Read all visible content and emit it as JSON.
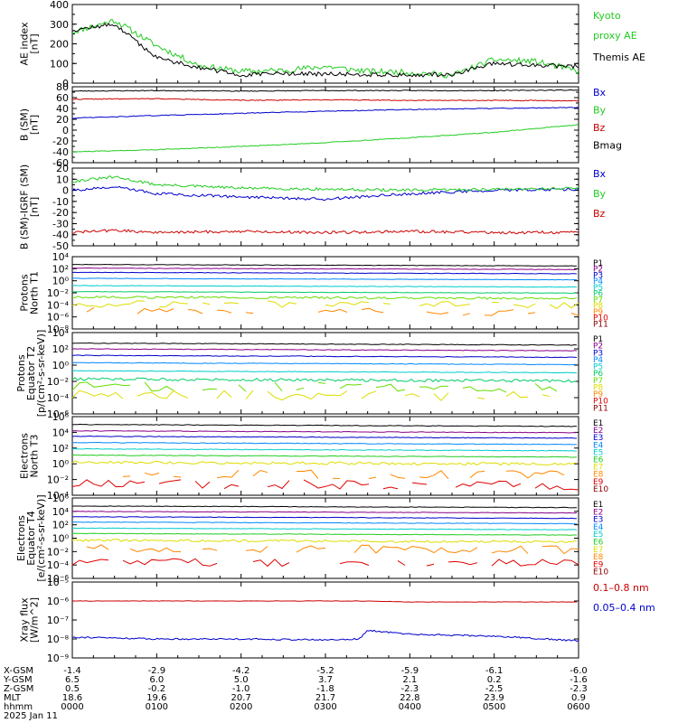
{
  "panels": [
    {
      "id": "ae",
      "ylabel": [
        "AE index",
        "[nT]"
      ],
      "ticks": [
        "400",
        "300",
        "200",
        "100",
        "0"
      ],
      "tick_values": [
        400,
        300,
        200,
        100,
        0
      ],
      "ylim": [
        0,
        400
      ],
      "log": false,
      "legend": [
        {
          "label": "Kyoto",
          "color": "#22cc22"
        },
        {
          "label": "proxy AE",
          "color": "#22cc22"
        },
        {
          "label": "Themis AE",
          "color": "#000000"
        }
      ]
    },
    {
      "id": "bsm",
      "ylabel": [
        "B (SM)",
        "[nT]"
      ],
      "ticks": [
        "80",
        "60",
        "40",
        "20",
        "0",
        "-20",
        "-40",
        "-60"
      ],
      "tick_values": [
        80,
        60,
        40,
        20,
        0,
        -20,
        -40,
        -60
      ],
      "ylim": [
        -60,
        80
      ],
      "log": false,
      "legend": [
        {
          "label": "Bx",
          "color": "#0000cc"
        },
        {
          "label": "By",
          "color": "#22cc22"
        },
        {
          "label": "Bz",
          "color": "#cc0000"
        },
        {
          "label": "Bmag",
          "color": "#000000"
        }
      ]
    },
    {
      "id": "bigrf",
      "ylabel": [
        "B (SM)-IGRF (SM)",
        "[nT]"
      ],
      "ticks": [
        "20",
        "10",
        "0",
        "-10",
        "-20",
        "-30",
        "-40",
        "-50"
      ],
      "tick_values": [
        20,
        10,
        0,
        -10,
        -20,
        -30,
        -40,
        -50
      ],
      "ylim": [
        -50,
        20
      ],
      "log": false,
      "legend": [
        {
          "label": "Bx",
          "color": "#0000cc"
        },
        {
          "label": "By",
          "color": "#22cc22"
        },
        {
          "label": "Bz",
          "color": "#cc0000"
        }
      ]
    },
    {
      "id": "pt1",
      "ylabel": [
        "Protons",
        "North T1"
      ],
      "ticks": [
        "10⁴",
        "10²",
        "10⁰",
        "10⁻²",
        "10⁻⁴",
        "10⁻⁶",
        "10⁻⁸"
      ],
      "tick_values": [
        4,
        2,
        0,
        -2,
        -4,
        -6,
        -8
      ],
      "ylim": [
        -8,
        4
      ],
      "log": true,
      "legend": [
        {
          "label": "P1",
          "color": "#000000"
        },
        {
          "label": "P2",
          "color": "#880088"
        },
        {
          "label": "P3",
          "color": "#0000cc"
        },
        {
          "label": "P4",
          "color": "#0088ff"
        },
        {
          "label": "P5",
          "color": "#00cccc"
        },
        {
          "label": "P6",
          "color": "#00cc66"
        },
        {
          "label": "P7",
          "color": "#66dd00"
        },
        {
          "label": "P8",
          "color": "#dddd00"
        },
        {
          "label": "P9",
          "color": "#ff8800"
        },
        {
          "label": "P10",
          "color": "#dd0000"
        },
        {
          "label": "P11",
          "color": "#880000"
        }
      ]
    },
    {
      "id": "pt2",
      "ylabel": [
        "Protons",
        "Equator T2",
        "[p/(cm²-s-sr-keV)]"
      ],
      "ticks": [
        "10⁴",
        "10²",
        "10⁰",
        "10⁻²",
        "10⁻⁴",
        "10⁻⁶"
      ],
      "tick_values": [
        4,
        2,
        0,
        -2,
        -4,
        -6
      ],
      "ylim": [
        -6,
        4
      ],
      "log": true,
      "legend": [
        {
          "label": "P1",
          "color": "#000000"
        },
        {
          "label": "P2",
          "color": "#880088"
        },
        {
          "label": "P3",
          "color": "#0000cc"
        },
        {
          "label": "P4",
          "color": "#0088ff"
        },
        {
          "label": "P5",
          "color": "#00cccc"
        },
        {
          "label": "P6",
          "color": "#00cc66"
        },
        {
          "label": "P7",
          "color": "#66dd00"
        },
        {
          "label": "P8",
          "color": "#dddd00"
        },
        {
          "label": "P9",
          "color": "#ff8800"
        },
        {
          "label": "P10",
          "color": "#dd0000"
        },
        {
          "label": "P11",
          "color": "#880000"
        }
      ]
    },
    {
      "id": "et3",
      "ylabel": [
        "Electrons",
        "North T3"
      ],
      "ticks": [
        "10⁶",
        "10⁴",
        "10²",
        "10⁰",
        "10⁻²",
        "10⁻⁴"
      ],
      "tick_values": [
        6,
        4,
        2,
        0,
        -2,
        -4
      ],
      "ylim": [
        -4,
        6
      ],
      "log": true,
      "legend": [
        {
          "label": "E1",
          "color": "#000000"
        },
        {
          "label": "E2",
          "color": "#880088"
        },
        {
          "label": "E3",
          "color": "#0000cc"
        },
        {
          "label": "E4",
          "color": "#0088ff"
        },
        {
          "label": "E5",
          "color": "#00cccc"
        },
        {
          "label": "E6",
          "color": "#22cc22"
        },
        {
          "label": "E7",
          "color": "#dddd00"
        },
        {
          "label": "E8",
          "color": "#ff8800"
        },
        {
          "label": "E9",
          "color": "#dd0000"
        },
        {
          "label": "E10",
          "color": "#880000"
        }
      ]
    },
    {
      "id": "et4",
      "ylabel": [
        "Electrons",
        "Equator T4",
        "[e/(cm²-s-sr-keV)]"
      ],
      "ticks": [
        "10⁶",
        "10⁴",
        "10²",
        "10⁰",
        "10⁻²",
        "10⁻⁴",
        "10⁻⁶"
      ],
      "tick_values": [
        6,
        4,
        2,
        0,
        -2,
        -4,
        -6
      ],
      "ylim": [
        -6,
        6
      ],
      "log": true,
      "legend": [
        {
          "label": "E1",
          "color": "#000000"
        },
        {
          "label": "E2",
          "color": "#880088"
        },
        {
          "label": "E3",
          "color": "#0000cc"
        },
        {
          "label": "E4",
          "color": "#0088ff"
        },
        {
          "label": "E5",
          "color": "#00cccc"
        },
        {
          "label": "E6",
          "color": "#22cc22"
        },
        {
          "label": "E7",
          "color": "#dddd00"
        },
        {
          "label": "E8",
          "color": "#ff8800"
        },
        {
          "label": "E9",
          "color": "#dd0000"
        },
        {
          "label": "E10",
          "color": "#880000"
        }
      ]
    },
    {
      "id": "xray",
      "ylabel": [
        "Xray flux",
        "[W/m^2]"
      ],
      "ticks": [
        "10⁻⁵",
        "10⁻⁶",
        "10⁻⁷",
        "10⁻⁸",
        "10⁻⁹"
      ],
      "tick_values": [
        -5,
        -6,
        -7,
        -8,
        -9
      ],
      "ylim": [
        -9,
        -5
      ],
      "log": true,
      "legend": [
        {
          "label": "0.1–0.8 nm",
          "color": "#cc0000"
        },
        {
          "label": "0.05–0.4 nm",
          "color": "#0000cc"
        }
      ]
    }
  ],
  "bottom_axis": {
    "row_labels": [
      "X-GSM",
      "Y-GSM",
      "Z-GSM",
      "MLT",
      "hhmm",
      "2025 Jan 11"
    ],
    "columns": [
      [
        "-1.4",
        "6.5",
        "0.5",
        "18.6",
        "0000"
      ],
      [
        "-2.9",
        "6.0",
        "-0.2",
        "19.6",
        "0100"
      ],
      [
        "-4.2",
        "5.0",
        "-1.0",
        "20.7",
        "0200"
      ],
      [
        "-5.2",
        "3.7",
        "-1.8",
        "21.7",
        "0300"
      ],
      [
        "-5.9",
        "2.1",
        "-2.3",
        "22.8",
        "0400"
      ],
      [
        "-6.1",
        "0.2",
        "-2.5",
        "23.9",
        "0500"
      ],
      [
        "-6.0",
        "-1.6",
        "-2.3",
        "0.9",
        "0600"
      ]
    ]
  },
  "chart_data": [
    {
      "type": "line",
      "ylabel": "AE index [nT]",
      "ylim": [
        0,
        400
      ],
      "x": [
        0,
        0.5,
        1,
        1.5,
        2,
        2.5,
        3,
        3.5,
        4,
        4.5,
        5,
        5.5,
        6
      ],
      "series": [
        {
          "name": "Kyoto proxy AE",
          "values": [
            260,
            320,
            190,
            90,
            60,
            65,
            85,
            60,
            55,
            40,
            120,
            110,
            60
          ]
        },
        {
          "name": "Themis AE",
          "values": [
            270,
            300,
            130,
            80,
            40,
            50,
            45,
            45,
            40,
            45,
            100,
            90,
            85
          ]
        }
      ]
    },
    {
      "type": "line",
      "ylabel": "B (SM) [nT]",
      "ylim": [
        -60,
        80
      ],
      "x": [
        0,
        1,
        2,
        3,
        4,
        5,
        6
      ],
      "series": [
        {
          "name": "Bx",
          "values": [
            22,
            27,
            31,
            35,
            38,
            40,
            42
          ]
        },
        {
          "name": "By",
          "values": [
            -40,
            -36,
            -30,
            -23,
            -14,
            -4,
            10
          ]
        },
        {
          "name": "Bz",
          "values": [
            57,
            58,
            55,
            56,
            55,
            55,
            54
          ]
        },
        {
          "name": "Bmag",
          "values": [
            72,
            73,
            72,
            73,
            73,
            73,
            74
          ]
        }
      ]
    },
    {
      "type": "line",
      "ylabel": "B (SM)-IGRF (SM) [nT]",
      "ylim": [
        -50,
        20
      ],
      "x": [
        0,
        0.5,
        1,
        2,
        3,
        4,
        5,
        6
      ],
      "series": [
        {
          "name": "Bx",
          "values": [
            0,
            3,
            -3,
            -6,
            -8,
            -3,
            0,
            1
          ]
        },
        {
          "name": "By",
          "values": [
            8,
            12,
            5,
            2,
            1,
            0,
            1,
            2
          ]
        },
        {
          "name": "Bz",
          "values": [
            -38,
            -36,
            -38,
            -37,
            -38,
            -37,
            -38,
            -38
          ]
        }
      ]
    },
    {
      "type": "line",
      "ylabel": "Protons North T1 (log10 flux)",
      "ylim": [
        -8,
        4
      ],
      "series": [
        {
          "name": "P1",
          "values": [
            2.7
          ]
        },
        {
          "name": "P2",
          "values": [
            2.1
          ]
        },
        {
          "name": "P3",
          "values": [
            1.4
          ]
        },
        {
          "name": "P4",
          "values": [
            0.4
          ]
        },
        {
          "name": "P5",
          "values": [
            -0.8
          ]
        },
        {
          "name": "P6",
          "values": [
            -1.8
          ]
        },
        {
          "name": "P7",
          "values": [
            -2.7
          ]
        },
        {
          "name": "P8",
          "values": [
            -3.8
          ]
        },
        {
          "name": "P9",
          "values": [
            -5.0
          ]
        }
      ]
    },
    {
      "type": "line",
      "ylabel": "Protons Equator T2 (log10 flux)",
      "ylim": [
        -6,
        4
      ],
      "series": [
        {
          "name": "P1",
          "values": [
            2.7
          ]
        },
        {
          "name": "P2",
          "values": [
            2.0
          ]
        },
        {
          "name": "P3",
          "values": [
            1.2
          ]
        },
        {
          "name": "P4",
          "values": [
            0.3
          ]
        },
        {
          "name": "P5",
          "values": [
            -0.7
          ]
        },
        {
          "name": "P6",
          "values": [
            -1.7
          ]
        },
        {
          "name": "P7",
          "values": [
            -2.6
          ]
        },
        {
          "name": "P8",
          "values": [
            -3.6
          ]
        }
      ]
    },
    {
      "type": "line",
      "ylabel": "Electrons North T3 (log10 flux)",
      "ylim": [
        -4,
        6
      ],
      "series": [
        {
          "name": "E1",
          "values": [
            5.0
          ]
        },
        {
          "name": "E2",
          "values": [
            4.2
          ]
        },
        {
          "name": "E3",
          "values": [
            3.5
          ]
        },
        {
          "name": "E4",
          "values": [
            2.7
          ]
        },
        {
          "name": "E5",
          "values": [
            1.9
          ]
        },
        {
          "name": "E6",
          "values": [
            1.1
          ]
        },
        {
          "name": "E7",
          "values": [
            0.2
          ]
        },
        {
          "name": "E8",
          "values": [
            -1.2
          ]
        },
        {
          "name": "E9",
          "values": [
            -2.5
          ]
        }
      ]
    },
    {
      "type": "line",
      "ylabel": "Electrons Equator T4 (log10 flux)",
      "ylim": [
        -6,
        6
      ],
      "series": [
        {
          "name": "E1",
          "values": [
            4.8
          ]
        },
        {
          "name": "E2",
          "values": [
            4.0
          ]
        },
        {
          "name": "E3",
          "values": [
            3.2
          ]
        },
        {
          "name": "E4",
          "values": [
            2.4
          ]
        },
        {
          "name": "E5",
          "values": [
            1.5
          ]
        },
        {
          "name": "E6",
          "values": [
            0.7
          ]
        },
        {
          "name": "E7",
          "values": [
            -0.3
          ]
        },
        {
          "name": "E8",
          "values": [
            -1.5
          ]
        },
        {
          "name": "E9",
          "values": [
            -3.5
          ]
        }
      ]
    },
    {
      "type": "line",
      "ylabel": "Xray flux [W/m^2]",
      "ylim": [
        -9,
        -5
      ],
      "x": [
        0,
        1,
        2,
        3,
        3.4,
        3.5,
        4,
        5,
        6
      ],
      "series": [
        {
          "name": "0.1–0.8 nm",
          "values": [
            -6.0,
            -6.0,
            -6.0,
            -6.0,
            -6.0,
            -6.0,
            -6.05,
            -6.05,
            -6.05
          ]
        },
        {
          "name": "0.05–0.4 nm",
          "values": [
            -7.9,
            -8.0,
            -8.0,
            -8.05,
            -8.0,
            -7.55,
            -7.75,
            -7.85,
            -8.1
          ]
        }
      ]
    }
  ]
}
